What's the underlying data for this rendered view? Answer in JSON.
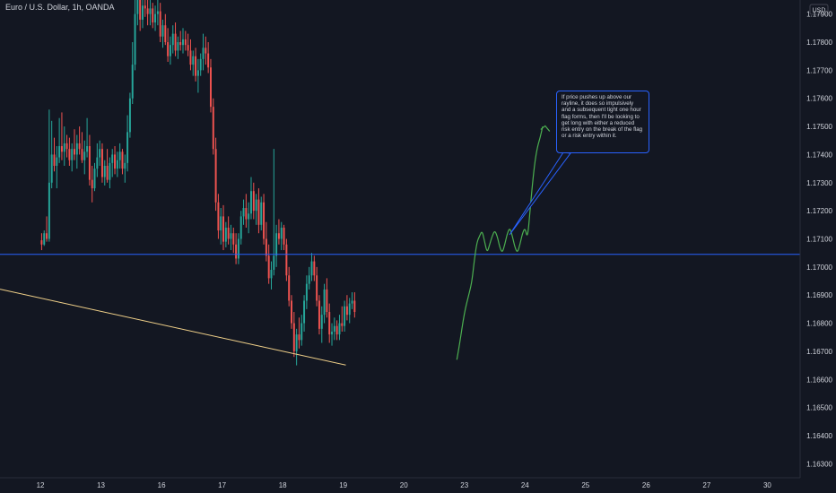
{
  "header": {
    "symbol_title": "Euro / U.S. Dollar, 1h, OANDA"
  },
  "colors": {
    "background": "#131722",
    "bull": "#26a69a",
    "bear": "#ef5350",
    "axis_text": "#d1d4dc",
    "grid": "#1e222d",
    "horizontal_line": "#2962ff",
    "trendline": "#f0d089",
    "drawing": "#4caf50",
    "callout_border": "#2962ff"
  },
  "callout": {
    "text": "If price pushes up above our rayline, it does so impulsively and a subsequent tight one hour flag forms, then I'll be looking to get long with either a reduced risk entry on the break of the flag or a risk entry within it."
  },
  "chart_data": {
    "type": "candlestick",
    "currency_label": "USD",
    "y_tick_labels": [
      "1.17900",
      "1.17800",
      "1.17700",
      "1.17600",
      "1.17500",
      "1.17400",
      "1.17300",
      "1.17200",
      "1.17100",
      "1.17000",
      "1.16900",
      "1.16800",
      "1.16700",
      "1.16600",
      "1.16500",
      "1.16400",
      "1.16300"
    ],
    "ylim": [
      1.1625,
      1.1795
    ],
    "x_tick_labels": [
      "12",
      "13",
      "16",
      "17",
      "18",
      "19",
      "20",
      "23",
      "24",
      "25",
      "26",
      "27",
      "30"
    ],
    "x_ticks": [
      0,
      24,
      48,
      72,
      96,
      120,
      144,
      168,
      192,
      216,
      240,
      264,
      288
    ],
    "xlim": [
      -16,
      301
    ],
    "horizontal_line": {
      "price": 1.17045
    },
    "trendline": {
      "from": [
        -16,
        1.16921
      ],
      "to": [
        121,
        1.16651
      ]
    },
    "projection_path": [
      [
        165,
        1.1667
      ],
      [
        166,
        1.1672
      ],
      [
        168,
        1.1684
      ],
      [
        170,
        1.1691
      ],
      [
        171,
        1.1695
      ],
      [
        172,
        1.1703
      ],
      [
        173,
        1.1709
      ],
      [
        174,
        1.1711
      ],
      [
        175,
        1.1713
      ],
      [
        176,
        1.1709
      ],
      [
        177,
        1.1705
      ],
      [
        178,
        1.1708
      ],
      [
        179,
        1.1711
      ],
      [
        180,
        1.1713
      ],
      [
        181,
        1.1711
      ],
      [
        182,
        1.1707
      ],
      [
        183,
        1.1705
      ],
      [
        184,
        1.1708
      ],
      [
        185,
        1.1712
      ],
      [
        186,
        1.1714
      ],
      [
        187,
        1.1711
      ],
      [
        188,
        1.1707
      ],
      [
        189,
        1.1705
      ],
      [
        190,
        1.1708
      ],
      [
        191,
        1.1712
      ],
      [
        192,
        1.1714
      ],
      [
        193,
        1.171
      ],
      [
        194,
        1.172
      ],
      [
        195,
        1.173
      ],
      [
        196,
        1.1738
      ],
      [
        197,
        1.1743
      ],
      [
        198,
        1.1746
      ],
      [
        199,
        1.175
      ]
    ],
    "arrow_tip": [
      200,
      1.17502
    ],
    "candles": [
      {
        "o": 1.17095,
        "h": 1.1712,
        "l": 1.1706,
        "c": 1.1708
      },
      {
        "o": 1.1708,
        "h": 1.1713,
        "l": 1.17075,
        "c": 1.1712
      },
      {
        "o": 1.1712,
        "h": 1.1718,
        "l": 1.1709,
        "c": 1.171
      },
      {
        "o": 1.171,
        "h": 1.1756,
        "l": 1.1709,
        "c": 1.173
      },
      {
        "o": 1.173,
        "h": 1.1752,
        "l": 1.1728,
        "c": 1.174
      },
      {
        "o": 1.174,
        "h": 1.1746,
        "l": 1.1734,
        "c": 1.1736
      },
      {
        "o": 1.1736,
        "h": 1.1743,
        "l": 1.1728,
        "c": 1.1739
      },
      {
        "o": 1.1739,
        "h": 1.1753,
        "l": 1.1737,
        "c": 1.1743
      },
      {
        "o": 1.1743,
        "h": 1.1755,
        "l": 1.1738,
        "c": 1.1741
      },
      {
        "o": 1.1741,
        "h": 1.175,
        "l": 1.1736,
        "c": 1.1744
      },
      {
        "o": 1.1744,
        "h": 1.1747,
        "l": 1.1739,
        "c": 1.1742
      },
      {
        "o": 1.1742,
        "h": 1.1746,
        "l": 1.1736,
        "c": 1.1738
      },
      {
        "o": 1.1738,
        "h": 1.1744,
        "l": 1.1734,
        "c": 1.1742
      },
      {
        "o": 1.1742,
        "h": 1.1749,
        "l": 1.1738,
        "c": 1.174
      },
      {
        "o": 1.174,
        "h": 1.1747,
        "l": 1.1735,
        "c": 1.1744
      },
      {
        "o": 1.1744,
        "h": 1.175,
        "l": 1.174,
        "c": 1.1742
      },
      {
        "o": 1.1742,
        "h": 1.1748,
        "l": 1.1737,
        "c": 1.1738
      },
      {
        "o": 1.1738,
        "h": 1.1745,
        "l": 1.1733,
        "c": 1.1741
      },
      {
        "o": 1.1741,
        "h": 1.1753,
        "l": 1.1739,
        "c": 1.1743
      },
      {
        "o": 1.1743,
        "h": 1.1747,
        "l": 1.1729,
        "c": 1.1731
      },
      {
        "o": 1.1731,
        "h": 1.1736,
        "l": 1.1723,
        "c": 1.1728
      },
      {
        "o": 1.1728,
        "h": 1.1737,
        "l": 1.1727,
        "c": 1.1735
      },
      {
        "o": 1.1735,
        "h": 1.1744,
        "l": 1.1732,
        "c": 1.1739
      },
      {
        "o": 1.1739,
        "h": 1.1745,
        "l": 1.1736,
        "c": 1.1742
      },
      {
        "o": 1.1742,
        "h": 1.1744,
        "l": 1.173,
        "c": 1.1732
      },
      {
        "o": 1.1732,
        "h": 1.1738,
        "l": 1.1729,
        "c": 1.1736
      },
      {
        "o": 1.1736,
        "h": 1.1742,
        "l": 1.173,
        "c": 1.1731
      },
      {
        "o": 1.1731,
        "h": 1.1739,
        "l": 1.1728,
        "c": 1.1737
      },
      {
        "o": 1.1737,
        "h": 1.1742,
        "l": 1.1732,
        "c": 1.174
      },
      {
        "o": 1.174,
        "h": 1.1743,
        "l": 1.1733,
        "c": 1.1735
      },
      {
        "o": 1.1735,
        "h": 1.1741,
        "l": 1.1732,
        "c": 1.1738
      },
      {
        "o": 1.1738,
        "h": 1.1744,
        "l": 1.1735,
        "c": 1.1741
      },
      {
        "o": 1.1741,
        "h": 1.1742,
        "l": 1.1733,
        "c": 1.1735
      },
      {
        "o": 1.1735,
        "h": 1.174,
        "l": 1.173,
        "c": 1.1737
      },
      {
        "o": 1.1737,
        "h": 1.1754,
        "l": 1.1734,
        "c": 1.1748
      },
      {
        "o": 1.1748,
        "h": 1.1762,
        "l": 1.1746,
        "c": 1.176
      },
      {
        "o": 1.176,
        "h": 1.178,
        "l": 1.1758,
        "c": 1.1772
      },
      {
        "o": 1.1772,
        "h": 1.1796,
        "l": 1.177,
        "c": 1.179
      },
      {
        "o": 1.179,
        "h": 1.18,
        "l": 1.1786,
        "c": 1.1795
      },
      {
        "o": 1.1795,
        "h": 1.1798,
        "l": 1.1784,
        "c": 1.1788
      },
      {
        "o": 1.1788,
        "h": 1.1795,
        "l": 1.1785,
        "c": 1.1793
      },
      {
        "o": 1.1793,
        "h": 1.1798,
        "l": 1.1789,
        "c": 1.1792
      },
      {
        "o": 1.1792,
        "h": 1.1796,
        "l": 1.1786,
        "c": 1.179
      },
      {
        "o": 1.179,
        "h": 1.1795,
        "l": 1.1786,
        "c": 1.1792
      },
      {
        "o": 1.1792,
        "h": 1.1794,
        "l": 1.1785,
        "c": 1.1787
      },
      {
        "o": 1.1787,
        "h": 1.1793,
        "l": 1.1784,
        "c": 1.179
      },
      {
        "o": 1.179,
        "h": 1.1795,
        "l": 1.1786,
        "c": 1.1791
      },
      {
        "o": 1.1791,
        "h": 1.1794,
        "l": 1.178,
        "c": 1.1782
      },
      {
        "o": 1.1782,
        "h": 1.1788,
        "l": 1.1778,
        "c": 1.1786
      },
      {
        "o": 1.1786,
        "h": 1.179,
        "l": 1.1779,
        "c": 1.178
      },
      {
        "o": 1.178,
        "h": 1.1785,
        "l": 1.1773,
        "c": 1.1775
      },
      {
        "o": 1.1775,
        "h": 1.1782,
        "l": 1.1772,
        "c": 1.1779
      },
      {
        "o": 1.1779,
        "h": 1.1786,
        "l": 1.1776,
        "c": 1.1783
      },
      {
        "o": 1.1783,
        "h": 1.1787,
        "l": 1.1775,
        "c": 1.1777
      },
      {
        "o": 1.1777,
        "h": 1.1782,
        "l": 1.1774,
        "c": 1.178
      },
      {
        "o": 1.178,
        "h": 1.1784,
        "l": 1.1777,
        "c": 1.1779
      },
      {
        "o": 1.1779,
        "h": 1.1785,
        "l": 1.1776,
        "c": 1.1781
      },
      {
        "o": 1.1781,
        "h": 1.1784,
        "l": 1.1777,
        "c": 1.1779
      },
      {
        "o": 1.1779,
        "h": 1.1783,
        "l": 1.1775,
        "c": 1.1777
      },
      {
        "o": 1.1777,
        "h": 1.1781,
        "l": 1.177,
        "c": 1.1772
      },
      {
        "o": 1.1772,
        "h": 1.1777,
        "l": 1.1768,
        "c": 1.1775
      },
      {
        "o": 1.1775,
        "h": 1.1778,
        "l": 1.1766,
        "c": 1.1768
      },
      {
        "o": 1.1768,
        "h": 1.1774,
        "l": 1.1762,
        "c": 1.177
      },
      {
        "o": 1.177,
        "h": 1.1776,
        "l": 1.1768,
        "c": 1.1774
      },
      {
        "o": 1.1774,
        "h": 1.1783,
        "l": 1.177,
        "c": 1.1778
      },
      {
        "o": 1.1778,
        "h": 1.1782,
        "l": 1.1772,
        "c": 1.1776
      },
      {
        "o": 1.1776,
        "h": 1.178,
        "l": 1.1769,
        "c": 1.1771
      },
      {
        "o": 1.1771,
        "h": 1.1774,
        "l": 1.1755,
        "c": 1.1757
      },
      {
        "o": 1.1757,
        "h": 1.176,
        "l": 1.174,
        "c": 1.1742
      },
      {
        "o": 1.1742,
        "h": 1.1746,
        "l": 1.172,
        "c": 1.1723
      },
      {
        "o": 1.1723,
        "h": 1.1726,
        "l": 1.171,
        "c": 1.1713
      },
      {
        "o": 1.1713,
        "h": 1.1721,
        "l": 1.1708,
        "c": 1.1718
      },
      {
        "o": 1.1718,
        "h": 1.1722,
        "l": 1.1706,
        "c": 1.1709
      },
      {
        "o": 1.1709,
        "h": 1.1716,
        "l": 1.1707,
        "c": 1.1714
      },
      {
        "o": 1.1714,
        "h": 1.1718,
        "l": 1.1708,
        "c": 1.171
      },
      {
        "o": 1.171,
        "h": 1.1715,
        "l": 1.1706,
        "c": 1.1712
      },
      {
        "o": 1.1712,
        "h": 1.1714,
        "l": 1.1705,
        "c": 1.1708
      },
      {
        "o": 1.1708,
        "h": 1.1712,
        "l": 1.1701,
        "c": 1.1703
      },
      {
        "o": 1.1703,
        "h": 1.1712,
        "l": 1.1701,
        "c": 1.171
      },
      {
        "o": 1.171,
        "h": 1.172,
        "l": 1.1708,
        "c": 1.1718
      },
      {
        "o": 1.1718,
        "h": 1.1724,
        "l": 1.1715,
        "c": 1.1721
      },
      {
        "o": 1.1721,
        "h": 1.1726,
        "l": 1.1714,
        "c": 1.1717
      },
      {
        "o": 1.1717,
        "h": 1.1723,
        "l": 1.1712,
        "c": 1.1719
      },
      {
        "o": 1.1719,
        "h": 1.1732,
        "l": 1.1717,
        "c": 1.1727
      },
      {
        "o": 1.1727,
        "h": 1.173,
        "l": 1.1717,
        "c": 1.172
      },
      {
        "o": 1.172,
        "h": 1.1726,
        "l": 1.1715,
        "c": 1.1724
      },
      {
        "o": 1.1724,
        "h": 1.1728,
        "l": 1.1712,
        "c": 1.1715
      },
      {
        "o": 1.1715,
        "h": 1.1725,
        "l": 1.1713,
        "c": 1.1723
      },
      {
        "o": 1.1723,
        "h": 1.1726,
        "l": 1.1708,
        "c": 1.171
      },
      {
        "o": 1.171,
        "h": 1.1716,
        "l": 1.1702,
        "c": 1.1704
      },
      {
        "o": 1.1704,
        "h": 1.1708,
        "l": 1.1694,
        "c": 1.1696
      },
      {
        "o": 1.1696,
        "h": 1.1702,
        "l": 1.1692,
        "c": 1.1699
      },
      {
        "o": 1.1699,
        "h": 1.1742,
        "l": 1.1697,
        "c": 1.1704
      },
      {
        "o": 1.1704,
        "h": 1.1715,
        "l": 1.17,
        "c": 1.1712
      },
      {
        "o": 1.1712,
        "h": 1.1717,
        "l": 1.1708,
        "c": 1.171
      },
      {
        "o": 1.171,
        "h": 1.1716,
        "l": 1.1706,
        "c": 1.1714
      },
      {
        "o": 1.1714,
        "h": 1.1715,
        "l": 1.1706,
        "c": 1.1708
      },
      {
        "o": 1.1708,
        "h": 1.171,
        "l": 1.1695,
        "c": 1.1697
      },
      {
        "o": 1.1697,
        "h": 1.17,
        "l": 1.1686,
        "c": 1.1688
      },
      {
        "o": 1.1688,
        "h": 1.169,
        "l": 1.1678,
        "c": 1.168
      },
      {
        "o": 1.168,
        "h": 1.1684,
        "l": 1.1668,
        "c": 1.167
      },
      {
        "o": 1.167,
        "h": 1.1678,
        "l": 1.1665,
        "c": 1.1676
      },
      {
        "o": 1.1676,
        "h": 1.1682,
        "l": 1.1671,
        "c": 1.1674
      },
      {
        "o": 1.1674,
        "h": 1.1683,
        "l": 1.1672,
        "c": 1.168
      },
      {
        "o": 1.168,
        "h": 1.169,
        "l": 1.1677,
        "c": 1.1688
      },
      {
        "o": 1.1688,
        "h": 1.1697,
        "l": 1.1685,
        "c": 1.1694
      },
      {
        "o": 1.1694,
        "h": 1.17,
        "l": 1.1692,
        "c": 1.1697
      },
      {
        "o": 1.1697,
        "h": 1.1705,
        "l": 1.1695,
        "c": 1.1702
      },
      {
        "o": 1.1702,
        "h": 1.1704,
        "l": 1.1695,
        "c": 1.1697
      },
      {
        "o": 1.1697,
        "h": 1.17,
        "l": 1.1686,
        "c": 1.1688
      },
      {
        "o": 1.1688,
        "h": 1.169,
        "l": 1.1676,
        "c": 1.1678
      },
      {
        "o": 1.1678,
        "h": 1.1686,
        "l": 1.1673,
        "c": 1.1683
      },
      {
        "o": 1.1683,
        "h": 1.1694,
        "l": 1.168,
        "c": 1.1692
      },
      {
        "o": 1.1692,
        "h": 1.1696,
        "l": 1.1682,
        "c": 1.1684
      },
      {
        "o": 1.1684,
        "h": 1.1687,
        "l": 1.1673,
        "c": 1.1676
      },
      {
        "o": 1.1676,
        "h": 1.168,
        "l": 1.1672,
        "c": 1.1677
      },
      {
        "o": 1.1677,
        "h": 1.1682,
        "l": 1.1674,
        "c": 1.1679
      },
      {
        "o": 1.1679,
        "h": 1.1681,
        "l": 1.1674,
        "c": 1.1676
      },
      {
        "o": 1.1676,
        "h": 1.1683,
        "l": 1.1674,
        "c": 1.168
      },
      {
        "o": 1.168,
        "h": 1.1686,
        "l": 1.1677,
        "c": 1.1679
      },
      {
        "o": 1.1679,
        "h": 1.1688,
        "l": 1.1677,
        "c": 1.1686
      },
      {
        "o": 1.1686,
        "h": 1.169,
        "l": 1.1681,
        "c": 1.1683
      },
      {
        "o": 1.1683,
        "h": 1.1689,
        "l": 1.168,
        "c": 1.1687
      },
      {
        "o": 1.1687,
        "h": 1.1691,
        "l": 1.1685,
        "c": 1.1688
      },
      {
        "o": 1.1688,
        "h": 1.1691,
        "l": 1.1682,
        "c": 1.1684
      }
    ]
  }
}
